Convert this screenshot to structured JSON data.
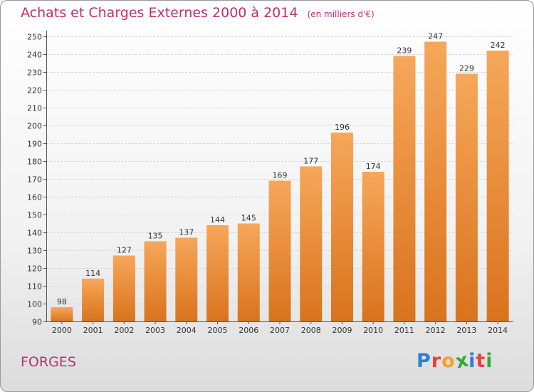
{
  "title": "Achats et Charges Externes 2000 à 2014",
  "subtitle": "(en milliers d'€)",
  "commune": "FORGES",
  "logo": {
    "letters": [
      {
        "char": "P",
        "color": "#2e7fd0"
      },
      {
        "char": "r",
        "color": "#e8403c"
      },
      {
        "char": "o",
        "color": "#f2a12a"
      },
      {
        "char": "x",
        "color": "#3aa63a"
      },
      {
        "char": "i",
        "color": "#2e7fd0"
      },
      {
        "char": "t",
        "color": "#e8403c"
      },
      {
        "char": "i",
        "color": "#3aa63a"
      }
    ]
  },
  "colors": {
    "title": "#c0306a",
    "bar_top": "#f6a75a",
    "bar_bottom": "#d9731d",
    "grid": "#d6d6d6",
    "axis": "#555555",
    "label": "#333333"
  },
  "chart_data": {
    "type": "bar",
    "categories": [
      "2000",
      "2001",
      "2002",
      "2003",
      "2004",
      "2005",
      "2006",
      "2007",
      "2008",
      "2009",
      "2010",
      "2011",
      "2012",
      "2013",
      "2014"
    ],
    "values": [
      98,
      114,
      127,
      135,
      137,
      144,
      145,
      169,
      177,
      196,
      174,
      239,
      247,
      229,
      242
    ],
    "ylim": [
      90,
      250
    ],
    "ytick_step": 10,
    "grid": true,
    "data_labels": true
  }
}
